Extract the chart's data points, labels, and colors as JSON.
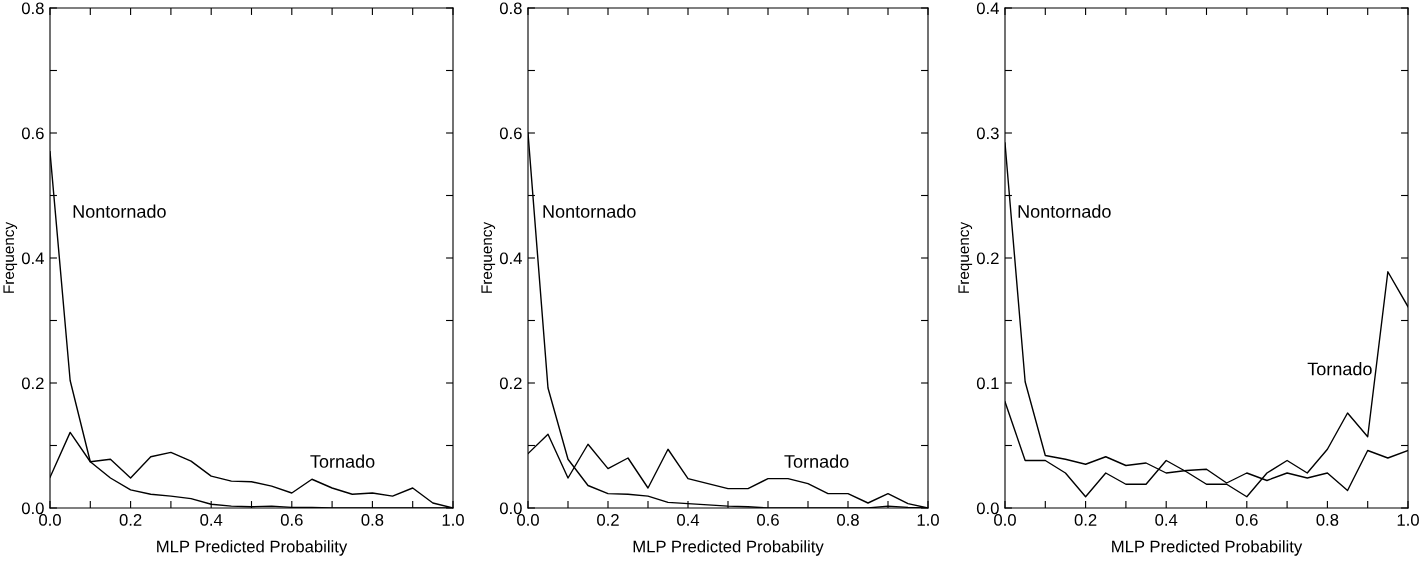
{
  "chart_data": [
    {
      "type": "line",
      "xlabel": "MLP Predicted Probability",
      "ylabel": "Frequency",
      "x": [
        0,
        0.05,
        0.1,
        0.15,
        0.2,
        0.25,
        0.3,
        0.35,
        0.4,
        0.45,
        0.5,
        0.55,
        0.6,
        0.65,
        0.7,
        0.75,
        0.8,
        0.85,
        0.9,
        0.95,
        1.0
      ],
      "series": [
        {
          "color": "#000000",
          "values": [
            0.57,
            0.204,
            0.074,
            0.048,
            0.029,
            0.022,
            0.019,
            0.015,
            0.006,
            0.003,
            0.002,
            0.003,
            0.001,
            0.001,
            0,
            0,
            0,
            0,
            0,
            0,
            0
          ]
        },
        {
          "color": "#000000",
          "values": [
            0.049,
            0.121,
            0.074,
            0.078,
            0.048,
            0.082,
            0.089,
            0.075,
            0.051,
            0.043,
            0.042,
            0.035,
            0.024,
            0.046,
            0.032,
            0.022,
            0.024,
            0.019,
            0.032,
            0.008,
            0
          ]
        }
      ],
      "xlim": [
        0,
        1
      ],
      "ylim": [
        0,
        0.8
      ],
      "xticks": [
        {
          "value": 0,
          "label": "0.0"
        },
        {
          "value": 0.1,
          "label": null
        },
        {
          "value": 0.2,
          "label": "0.2"
        },
        {
          "value": 0.3,
          "label": null
        },
        {
          "value": 0.4,
          "label": "0.4"
        },
        {
          "value": 0.5,
          "label": null
        },
        {
          "value": 0.6,
          "label": "0.6"
        },
        {
          "value": 0.7,
          "label": null
        },
        {
          "value": 0.8,
          "label": "0.8"
        },
        {
          "value": 0.9,
          "label": null
        },
        {
          "value": 1,
          "label": "1.0"
        }
      ],
      "yticks": [
        {
          "value": 0,
          "label": "0.0"
        },
        {
          "value": 0.1,
          "label": null
        },
        {
          "value": 0.2,
          "label": "0.2"
        },
        {
          "value": 0.3,
          "label": null
        },
        {
          "value": 0.4,
          "label": "0.4"
        },
        {
          "value": 0.5,
          "label": null
        },
        {
          "value": 0.6,
          "label": "0.6"
        },
        {
          "value": 0.7,
          "label": null
        },
        {
          "value": 0.8,
          "label": "0.8"
        }
      ],
      "annotations": [
        "Nontornado",
        "Tornado"
      ],
      "grid": false,
      "marker": "none",
      "line_style": "solid"
    },
    {
      "type": "line",
      "xlabel": "MLP Predicted Probability",
      "ylabel": "Frequency",
      "x": [
        0,
        0.05,
        0.1,
        0.15,
        0.2,
        0.25,
        0.3,
        0.35,
        0.4,
        0.45,
        0.5,
        0.55,
        0.6,
        0.65,
        0.7,
        0.75,
        0.8,
        0.85,
        0.9,
        0.95,
        1.0
      ],
      "series": [
        {
          "color": "#000000",
          "values": [
            0.6,
            0.192,
            0.078,
            0.036,
            0.023,
            0.022,
            0.019,
            0.009,
            0.007,
            0.005,
            0.003,
            0.002,
            0,
            0,
            0,
            0,
            0,
            0,
            0.003,
            0.001,
            0
          ]
        },
        {
          "color": "#000000",
          "values": [
            0.087,
            0.118,
            0.048,
            0.102,
            0.063,
            0.08,
            0.032,
            0.094,
            0.047,
            0.039,
            0.031,
            0.031,
            0.047,
            0.047,
            0.039,
            0.023,
            0.023,
            0.008,
            0.023,
            0.007,
            0
          ]
        }
      ],
      "xlim": [
        0,
        1
      ],
      "ylim": [
        0,
        0.8
      ],
      "xticks": [
        {
          "value": 0,
          "label": "0.0"
        },
        {
          "value": 0.1,
          "label": null
        },
        {
          "value": 0.2,
          "label": "0.2"
        },
        {
          "value": 0.3,
          "label": null
        },
        {
          "value": 0.4,
          "label": "0.4"
        },
        {
          "value": 0.5,
          "label": null
        },
        {
          "value": 0.6,
          "label": "0.6"
        },
        {
          "value": 0.7,
          "label": null
        },
        {
          "value": 0.8,
          "label": "0.8"
        },
        {
          "value": 0.9,
          "label": null
        },
        {
          "value": 1,
          "label": "1.0"
        }
      ],
      "yticks": [
        {
          "value": 0,
          "label": "0.0"
        },
        {
          "value": 0.1,
          "label": null
        },
        {
          "value": 0.2,
          "label": "0.2"
        },
        {
          "value": 0.3,
          "label": null
        },
        {
          "value": 0.4,
          "label": "0.4"
        },
        {
          "value": 0.5,
          "label": null
        },
        {
          "value": 0.6,
          "label": "0.6"
        },
        {
          "value": 0.7,
          "label": null
        },
        {
          "value": 0.8,
          "label": "0.8"
        }
      ],
      "annotations": [
        "Nontornado",
        "Tornado"
      ],
      "grid": false,
      "marker": "none",
      "line_style": "solid"
    },
    {
      "type": "line",
      "xlabel": "MLP Predicted Probability",
      "ylabel": "Frequency",
      "x": [
        0,
        0.05,
        0.1,
        0.15,
        0.2,
        0.25,
        0.3,
        0.35,
        0.4,
        0.45,
        0.5,
        0.55,
        0.6,
        0.65,
        0.7,
        0.75,
        0.8,
        0.85,
        0.9,
        0.95,
        1.0
      ],
      "series": [
        {
          "color": "#000000",
          "values": [
            0.292,
            0.101,
            0.042,
            0.039,
            0.035,
            0.041,
            0.034,
            0.036,
            0.028,
            0.03,
            0.031,
            0.02,
            0.028,
            0.022,
            0.028,
            0.024,
            0.028,
            0.014,
            0.046,
            0.04,
            0.046
          ]
        },
        {
          "color": "#000000",
          "values": [
            0.085,
            0.038,
            0.038,
            0.028,
            0.009,
            0.028,
            0.019,
            0.019,
            0.038,
            0.029,
            0.019,
            0.019,
            0.009,
            0.028,
            0.038,
            0.028,
            0.047,
            0.076,
            0.057,
            0.189,
            0.161
          ]
        }
      ],
      "xlim": [
        0,
        1
      ],
      "ylim": [
        0,
        0.4
      ],
      "xticks": [
        {
          "value": 0,
          "label": "0.0"
        },
        {
          "value": 0.1,
          "label": null
        },
        {
          "value": 0.2,
          "label": "0.2"
        },
        {
          "value": 0.3,
          "label": null
        },
        {
          "value": 0.4,
          "label": "0.4"
        },
        {
          "value": 0.5,
          "label": null
        },
        {
          "value": 0.6,
          "label": "0.6"
        },
        {
          "value": 0.7,
          "label": null
        },
        {
          "value": 0.8,
          "label": "0.8"
        },
        {
          "value": 0.9,
          "label": null
        },
        {
          "value": 1,
          "label": "1.0"
        }
      ],
      "yticks": [
        {
          "value": 0,
          "label": "0.0"
        },
        {
          "value": 0.05,
          "label": null
        },
        {
          "value": 0.1,
          "label": "0.1"
        },
        {
          "value": 0.15,
          "label": null
        },
        {
          "value": 0.2,
          "label": "0.2"
        },
        {
          "value": 0.25,
          "label": null
        },
        {
          "value": 0.3,
          "label": "0.3"
        },
        {
          "value": 0.35,
          "label": null
        },
        {
          "value": 0.4,
          "label": "0.4"
        }
      ],
      "annotations": [
        "Nontornado",
        "Tornado"
      ],
      "grid": false,
      "marker": "none",
      "line_style": "solid"
    }
  ]
}
